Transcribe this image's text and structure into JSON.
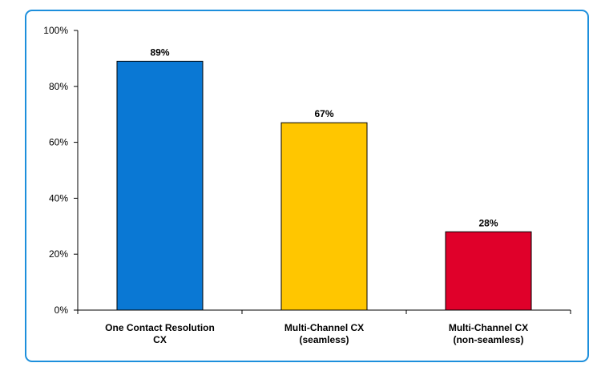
{
  "chart_data": {
    "type": "bar",
    "categories": [
      [
        "One Contact Resolution",
        "CX"
      ],
      [
        "Multi-Channel CX",
        "(seamless)"
      ],
      [
        "Multi-Channel CX",
        "(non-seamless)"
      ]
    ],
    "values": [
      89,
      67,
      28
    ],
    "data_labels": [
      "89%",
      "67%",
      "28%"
    ],
    "bar_colors": [
      "#0a78d4",
      "#ffc600",
      "#e0002a"
    ],
    "ylim": [
      0,
      100
    ],
    "yticks": [
      0,
      20,
      40,
      60,
      80,
      100
    ],
    "ytick_labels": [
      "0%",
      "20%",
      "40%",
      "60%",
      "80%",
      "100%"
    ],
    "grid": false,
    "legend": "none",
    "frame_color": "#1d8fdc"
  }
}
